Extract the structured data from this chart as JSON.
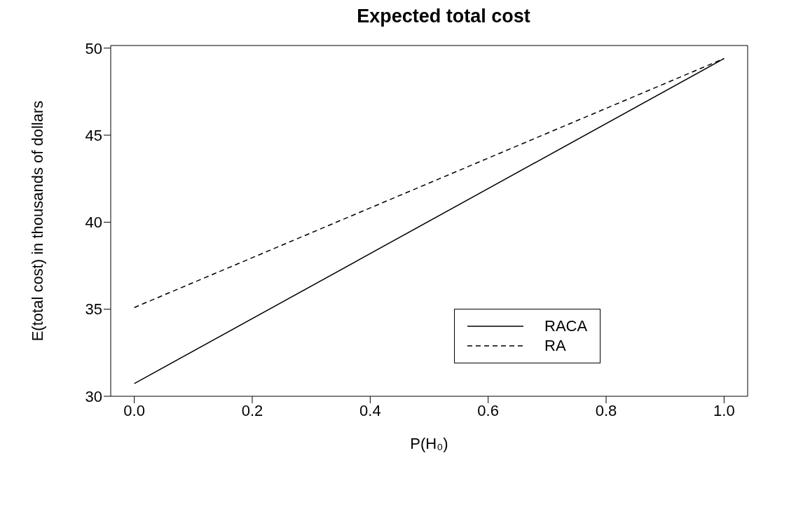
{
  "chart_data": {
    "type": "line",
    "title": "Expected total cost",
    "xlabel": "P(H₀)",
    "ylabel": "E(total cost) in thousands of dollars",
    "x": [
      0,
      1
    ],
    "series": [
      {
        "name": "RACA",
        "color": "#000000",
        "line_style": "solid",
        "values": [
          30.73,
          49.4
        ]
      },
      {
        "name": "RA",
        "color": "#000000",
        "line_style": "dashed",
        "values": [
          35.1,
          49.4
        ]
      }
    ],
    "xlim": [
      -0.04,
      1.04
    ],
    "xticks": [
      {
        "value": 0,
        "label": "0.0"
      },
      {
        "value": 0.2,
        "label": "0.2"
      },
      {
        "value": 0.4,
        "label": "0.4"
      },
      {
        "value": 0.6,
        "label": "0.6"
      },
      {
        "value": 0.8,
        "label": "0.8"
      },
      {
        "value": 1,
        "label": "1.0"
      }
    ],
    "ylim": [
      30,
      50.15
    ],
    "yticks": [
      30,
      35,
      40,
      45,
      50
    ],
    "grid": false,
    "legend": "bottom right",
    "marker": "none"
  }
}
